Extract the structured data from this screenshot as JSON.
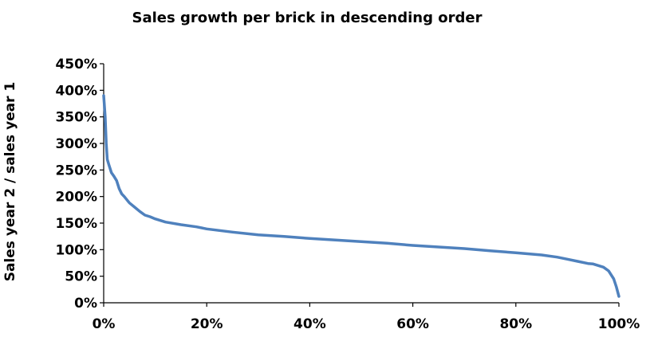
{
  "chart_data": {
    "type": "line",
    "title": "Sales growth per brick in descending order",
    "xlabel": "",
    "ylabel": "Sales year 2 / sales year 1",
    "xlim": [
      0,
      100
    ],
    "ylim": [
      0,
      450
    ],
    "x_ticks": [
      "0%",
      "20%",
      "40%",
      "60%",
      "80%",
      "100%"
    ],
    "y_ticks": [
      "0%",
      "50%",
      "100%",
      "150%",
      "200%",
      "250%",
      "300%",
      "350%",
      "400%",
      "450%"
    ],
    "grid": false,
    "legend": "none",
    "line_color": "#4f81bd",
    "series": [
      {
        "x": [
          0,
          0.3,
          0.5,
          0.7,
          1,
          1.5,
          2,
          2.5,
          3,
          3.5,
          4,
          5,
          6,
          7,
          8,
          9,
          10,
          12,
          15,
          18,
          20,
          25,
          30,
          35,
          40,
          45,
          50,
          55,
          60,
          65,
          70,
          75,
          80,
          85,
          88,
          90,
          92,
          94,
          95,
          96,
          97,
          98,
          99,
          99.5,
          100
        ],
        "y": [
          390,
          350,
          300,
          270,
          260,
          245,
          238,
          230,
          215,
          205,
          200,
          188,
          180,
          172,
          165,
          162,
          158,
          152,
          147,
          143,
          139,
          133,
          128,
          125,
          121,
          118,
          115,
          112,
          108,
          105,
          102,
          98,
          94,
          90,
          86,
          82,
          78,
          74,
          73,
          70,
          67,
          60,
          45,
          30,
          12
        ]
      }
    ]
  }
}
